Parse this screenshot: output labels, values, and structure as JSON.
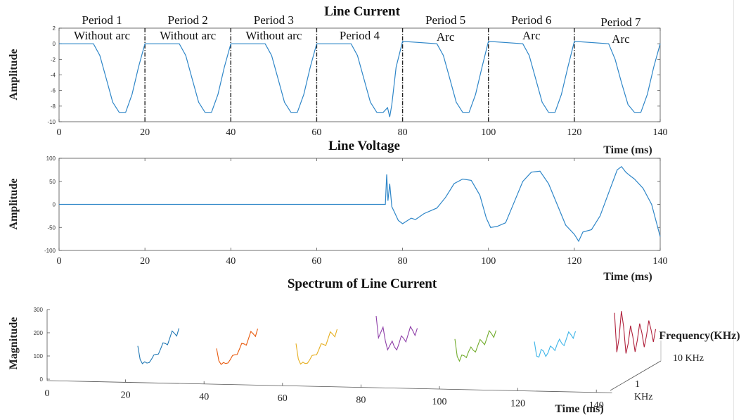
{
  "chart_data": [
    {
      "type": "line",
      "title": "Line Current",
      "ylabel": "Amplitude",
      "xlabel": "Time (ms)",
      "xlim": [
        0,
        140
      ],
      "ylim": [
        -10,
        2
      ],
      "x_ticks": [
        "0",
        "20",
        "40",
        "60",
        "80",
        "100",
        "120",
        "140"
      ],
      "y_ticks": [
        "2",
        "0",
        "-2",
        "-4",
        "-6",
        "-8",
        "-10"
      ],
      "period_boundaries_ms": [
        20,
        40,
        60,
        80,
        100,
        120
      ],
      "periods": [
        {
          "label": "Period 1",
          "sublabel": "Without arc"
        },
        {
          "label": "Period 2",
          "sublabel": "Without arc"
        },
        {
          "label": "Period 3",
          "sublabel": "Without arc"
        },
        {
          "label": "Period 4",
          "sublabel": ""
        },
        {
          "label": "Period 5",
          "sublabel": "Arc"
        },
        {
          "label": "Period 6",
          "sublabel": "Arc"
        },
        {
          "label": "Period 7",
          "sublabel": "Arc"
        }
      ],
      "series": [
        {
          "color": "#2e86c8",
          "x": [
            0,
            8,
            9.5,
            11,
            12.5,
            14,
            15.5,
            17,
            18.5,
            20,
            28,
            29.5,
            31,
            32.5,
            34,
            35.5,
            37,
            38.5,
            40,
            48,
            49.5,
            51,
            52.5,
            54,
            55.5,
            57,
            58.5,
            60,
            68,
            69.5,
            71,
            72.5,
            74,
            75.5,
            76.5,
            77,
            77.5,
            78.5,
            80,
            88,
            89.5,
            91,
            92.5,
            94,
            95.5,
            97,
            98.5,
            100,
            108,
            109.5,
            111,
            112.5,
            114,
            115.5,
            117,
            118.5,
            120,
            128,
            129.5,
            131,
            132.5,
            134,
            135.5,
            137,
            138.5,
            140
          ],
          "y": [
            0,
            0,
            -1.5,
            -4.5,
            -7.5,
            -8.8,
            -8.8,
            -6.5,
            -3,
            0,
            0,
            -1.5,
            -4.5,
            -7.5,
            -8.8,
            -8.8,
            -6.5,
            -3,
            0,
            0,
            -1.5,
            -4.5,
            -7.5,
            -8.8,
            -8.8,
            -6.5,
            -3,
            0,
            0,
            -1.5,
            -4.5,
            -7.5,
            -8.8,
            -8.8,
            -8.2,
            -9.4,
            -7.8,
            -3,
            0.3,
            0,
            -1.5,
            -4.5,
            -7.5,
            -8.8,
            -8.8,
            -6.5,
            -3,
            0.3,
            0,
            -1.5,
            -4.5,
            -7.5,
            -8.8,
            -8.8,
            -6.5,
            -3,
            0.3,
            0,
            -2,
            -5,
            -7.8,
            -8.8,
            -8.8,
            -6.5,
            -3,
            0
          ]
        }
      ]
    },
    {
      "type": "line",
      "title": "Line Voltage",
      "ylabel": "Amplitude",
      "xlabel": "Time (ms)",
      "xlim": [
        0,
        140
      ],
      "ylim": [
        -100,
        100
      ],
      "x_ticks": [
        "0",
        "20",
        "40",
        "60",
        "80",
        "100",
        "120",
        "140"
      ],
      "y_ticks": [
        "100",
        "50",
        "0",
        "-50",
        "-100"
      ],
      "series": [
        {
          "color": "#2e86c8",
          "x": [
            0,
            76,
            76.3,
            76.6,
            77,
            77.5,
            78,
            79,
            80,
            82,
            83,
            85,
            88,
            90,
            92,
            94,
            96,
            98,
            99.5,
            100.5,
            102,
            104,
            106,
            108,
            110,
            112,
            114,
            116,
            118,
            120,
            121,
            122,
            124,
            126,
            128,
            130,
            131,
            132,
            133,
            134,
            136,
            138,
            140
          ],
          "y": [
            0,
            0,
            65,
            8,
            45,
            -5,
            -15,
            -35,
            -42,
            -30,
            -33,
            -20,
            -8,
            15,
            45,
            55,
            52,
            20,
            -30,
            -50,
            -48,
            -40,
            5,
            50,
            70,
            72,
            45,
            0,
            -45,
            -65,
            -80,
            -60,
            -55,
            -25,
            25,
            75,
            82,
            70,
            62,
            55,
            35,
            0,
            -70
          ]
        }
      ]
    },
    {
      "type": "line",
      "title": "Spectrum of Line Current",
      "ylabel": "Magnitude",
      "xlabel": "Time (ms)",
      "zlabel": "Frequency(KHz)",
      "ylim": [
        0,
        300
      ],
      "x_ticks": [
        "0",
        "20",
        "40",
        "60",
        "80",
        "100",
        "120",
        "140"
      ],
      "y_ticks": [
        "300",
        "200",
        "100",
        "0"
      ],
      "z_ticks": [
        "1 KHz",
        "10 KHz"
      ],
      "frequency_khz": [
        1,
        2,
        3,
        4,
        5,
        6,
        7,
        8,
        9,
        10
      ],
      "series": [
        {
          "name": "Period 1",
          "color": "#1f77b4",
          "magnitude": [
            125,
            30,
            20,
            25,
            35,
            48,
            60,
            72,
            82,
            92
          ]
        },
        {
          "name": "Period 2",
          "color": "#e8590c",
          "magnitude": [
            115,
            28,
            20,
            25,
            35,
            48,
            60,
            72,
            82,
            92
          ]
        },
        {
          "name": "Period 3",
          "color": "#e6ae1f",
          "magnitude": [
            140,
            32,
            22,
            26,
            36,
            48,
            60,
            72,
            82,
            92
          ]
        },
        {
          "name": "Period 4",
          "color": "#8e3fa8",
          "magnitude": [
            270,
            180,
            130,
            95,
            75,
            78,
            90,
            95,
            100,
            98
          ]
        },
        {
          "name": "Period 5",
          "color": "#72ac2d",
          "magnitude": [
            165,
            50,
            62,
            68,
            62,
            70,
            75,
            80,
            88,
            90
          ]
        },
        {
          "name": "Period 6",
          "color": "#3eb5e8",
          "magnitude": [
            155,
            70,
            85,
            65,
            75,
            80,
            70,
            78,
            85,
            88
          ]
        },
        {
          "name": "Period 7",
          "color": "#b0213c",
          "magnitude": [
            290,
            160,
            200,
            110,
            130,
            100,
            120,
            95,
            110,
            100
          ]
        }
      ]
    }
  ]
}
